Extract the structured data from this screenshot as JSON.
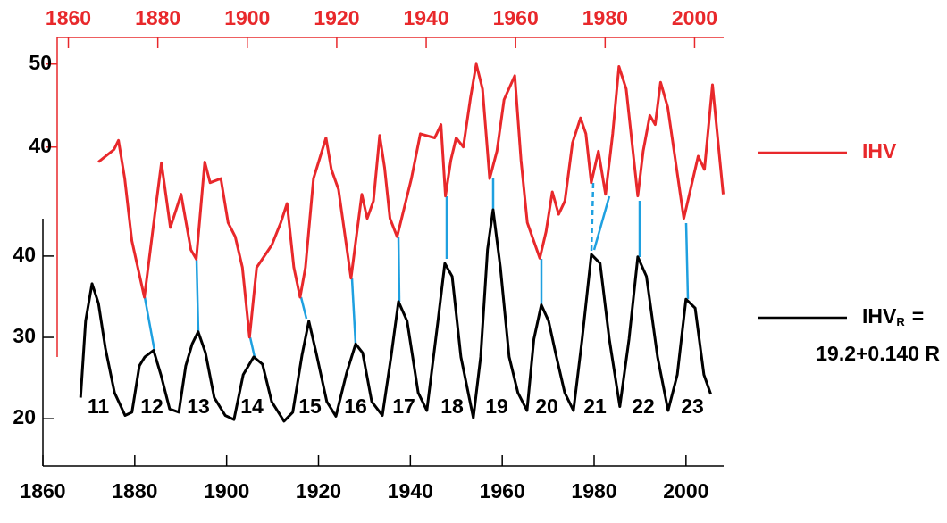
{
  "chart_data": {
    "type": "line",
    "xlim": [
      1860,
      2008.2
    ],
    "xticks": [
      1860,
      1880,
      1900,
      1920,
      1940,
      1960,
      1980,
      2000
    ],
    "x2lim": [
      1857.5,
      2006.5
    ],
    "x2ticks": [
      1860,
      1880,
      1900,
      1920,
      1940,
      1960,
      1980,
      2000
    ],
    "ylim": [
      14.2,
      44.6
    ],
    "yticks": [
      20,
      30,
      40
    ],
    "y2lim": [
      14.7,
      53.2
    ],
    "y2ticks": [
      40,
      50
    ],
    "series": [
      {
        "name": "IHV",
        "color": "#e8282b",
        "axis": "y2",
        "xaxis": "x2",
        "x": [
          1866.7,
          1870.2,
          1871.2,
          1872.6,
          1874.2,
          1877.0,
          1879.6,
          1880.8,
          1882.8,
          1885.2,
          1887.4,
          1888.6,
          1890.5,
          1891.7,
          1894.1,
          1895.7,
          1897.3,
          1898.9,
          1900.5,
          1902.1,
          1905.5,
          1907.5,
          1908.9,
          1910.4,
          1911.8,
          1913.0,
          1914.8,
          1917.6,
          1918.8,
          1920.4,
          1923.2,
          1925.6,
          1926.8,
          1928.2,
          1929.6,
          1930.7,
          1931.9,
          1933.5,
          1936.7,
          1938.7,
          1941.9,
          1943.3,
          1944.3,
          1945.5,
          1946.7,
          1948.3,
          1949.9,
          1951.2,
          1952.6,
          1954.2,
          1955.8,
          1957.4,
          1959.8,
          1961.2,
          1962.6,
          1965.4,
          1966.8,
          1968.2,
          1969.6,
          1971.0,
          1972.7,
          1974.5,
          1975.7,
          1976.9,
          1978.5,
          1980.1,
          1981.7,
          1983.1,
          1984.7,
          1987.3,
          1988.5,
          1990.0,
          1991.2,
          1992.4,
          1994.0,
          1997.6,
          2000.8,
          2002.2,
          2004.0,
          2006.4
        ],
        "values": [
          38.2,
          39.7,
          40.8,
          36.2,
          28.7,
          21.9,
          33.0,
          38.1,
          30.3,
          34.3,
          27.6,
          26.5,
          38.2,
          35.7,
          36.2,
          30.9,
          29.2,
          25.5,
          17.1,
          25.5,
          28.2,
          30.9,
          33.2,
          25.5,
          21.9,
          25.5,
          36.2,
          41.1,
          37.3,
          34.9,
          24.2,
          34.3,
          31.4,
          33.5,
          41.4,
          37.5,
          31.4,
          29.2,
          36.2,
          41.6,
          41.1,
          42.7,
          34.1,
          38.4,
          41.1,
          40.0,
          45.9,
          50.0,
          47.0,
          36.2,
          39.5,
          45.7,
          48.6,
          38.4,
          30.9,
          26.6,
          29.8,
          34.6,
          31.9,
          33.5,
          40.5,
          43.5,
          41.6,
          35.7,
          39.5,
          34.3,
          41.6,
          49.7,
          47.0,
          34.1,
          39.5,
          43.8,
          42.7,
          47.8,
          44.8,
          31.4,
          38.9,
          37.3,
          47.5,
          34.3
        ]
      },
      {
        "name": "IHV",
        "name_subscript": "R",
        "name_suffix": "=",
        "formula": "19.2+0.140 R",
        "color": "#000000",
        "x": [
          1868.2,
          1869.3,
          1870.7,
          1872.1,
          1873.6,
          1875.6,
          1877.9,
          1879.4,
          1881.0,
          1882.2,
          1884.1,
          1885.7,
          1887.6,
          1889.6,
          1891.1,
          1892.5,
          1893.8,
          1895.4,
          1897.3,
          1899.7,
          1901.6,
          1903.6,
          1905.9,
          1907.8,
          1909.8,
          1912.5,
          1914.4,
          1916.4,
          1917.9,
          1919.5,
          1921.8,
          1923.8,
          1926.1,
          1928.1,
          1929.6,
          1931.6,
          1933.9,
          1935.8,
          1937.4,
          1939.3,
          1941.7,
          1943.6,
          1946.0,
          1947.5,
          1949.1,
          1951.0,
          1953.7,
          1955.3,
          1956.8,
          1958.0,
          1959.6,
          1961.5,
          1963.4,
          1965.4,
          1966.9,
          1968.5,
          1970.1,
          1971.6,
          1973.6,
          1975.5,
          1977.4,
          1979.4,
          1981.3,
          1983.3,
          1985.6,
          1987.6,
          1989.5,
          1991.4,
          1993.8,
          1996.1,
          1998.1,
          2000.0,
          2002.0,
          2003.9,
          2005.4
        ],
        "values": [
          22.6,
          32.0,
          36.6,
          34.2,
          28.7,
          23.2,
          20.4,
          20.8,
          26.5,
          27.6,
          28.4,
          25.4,
          21.2,
          20.8,
          26.5,
          29.2,
          30.7,
          28.1,
          22.6,
          20.4,
          19.9,
          25.4,
          27.6,
          26.7,
          22.1,
          19.7,
          20.8,
          27.8,
          32.0,
          28.1,
          22.1,
          20.3,
          25.6,
          29.2,
          28.1,
          22.1,
          20.4,
          27.6,
          34.4,
          32.0,
          23.2,
          21.0,
          32.0,
          39.1,
          37.5,
          27.6,
          20.1,
          27.6,
          40.8,
          45.7,
          38.6,
          27.6,
          23.2,
          21.0,
          29.8,
          34.0,
          32.0,
          28.1,
          23.2,
          21.0,
          29.8,
          40.2,
          39.1,
          29.8,
          21.5,
          29.8,
          39.9,
          37.5,
          27.6,
          21.0,
          25.4,
          34.7,
          33.6,
          25.4,
          23.0
        ]
      }
    ],
    "annotations": [
      "11",
      "12",
      "13",
      "14",
      "15",
      "16",
      "17",
      "18",
      "19",
      "20",
      "21",
      "22",
      "23"
    ],
    "connector_color": "#1ea0e0"
  }
}
